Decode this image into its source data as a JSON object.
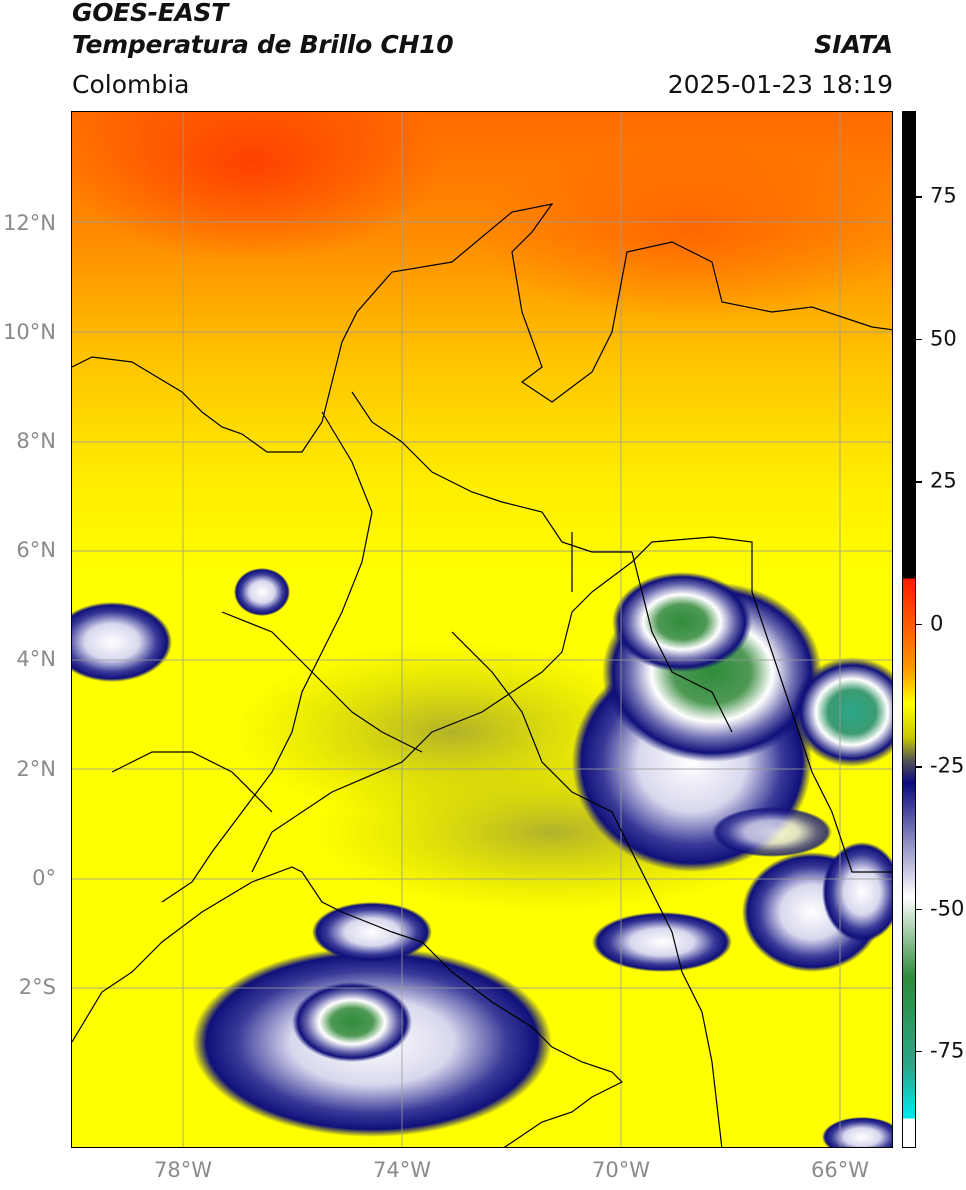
{
  "header": {
    "title_line1": "GOES-EAST",
    "title_line2": "Temperatura de Brillo CH10",
    "region": "Colombia",
    "brand": "SIATA",
    "timestamp": "2025-01-23 18:19"
  },
  "map": {
    "lon_range": [
      -80,
      -65
    ],
    "lat_range": [
      -5,
      14
    ],
    "lat_labels": [
      "12°N",
      "10°N",
      "8°N",
      "6°N",
      "4°N",
      "2°N",
      "0°",
      "2°S"
    ],
    "lon_labels": [
      "78°W",
      "74°W",
      "70°W",
      "66°W"
    ],
    "gridline_color": "#9a9a9a",
    "background_color": "#ffff00"
  },
  "colorbar": {
    "ticks": [
      "75",
      "50",
      "25",
      "0",
      "-25",
      "-50",
      "-75"
    ],
    "tick_values": [
      75,
      50,
      25,
      0,
      -25,
      -50,
      -75
    ],
    "range": [
      -92,
      90
    ],
    "colors": {
      "black": "#000000",
      "red": "#ff1a00",
      "orange": "#ff9900",
      "yellow": "#ffff00",
      "olive": "#c8c800",
      "navy": "#0a0a80",
      "white": "#ffffff",
      "green": "#2e8b3a",
      "cyan": "#00e5e5"
    }
  }
}
